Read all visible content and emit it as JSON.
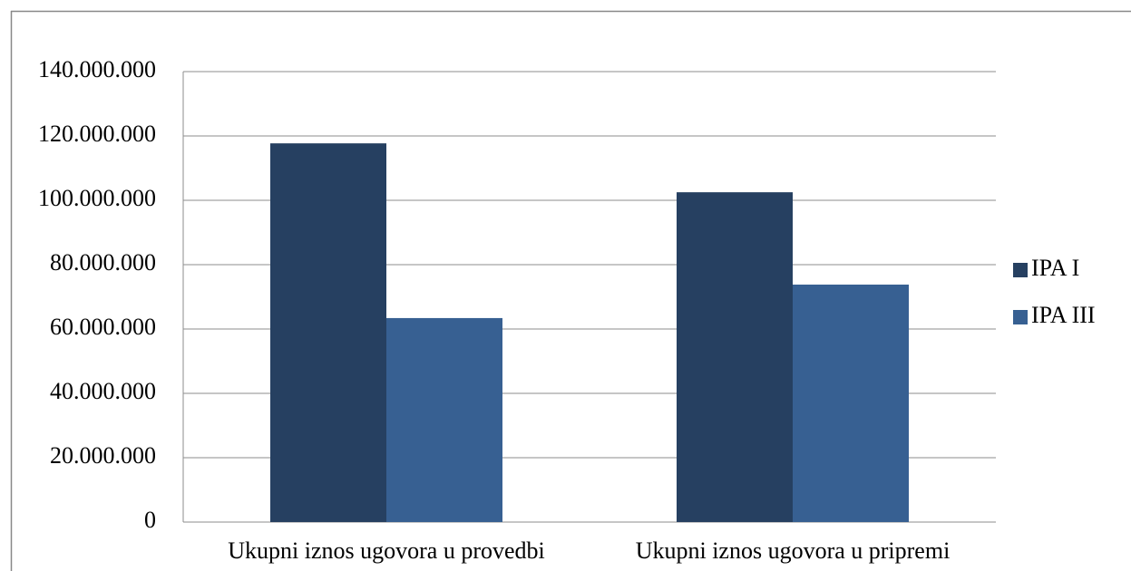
{
  "chart_data": {
    "type": "bar",
    "categories": [
      "Ukupni iznos ugovora u provedbi",
      "Ukupni iznos ugovora u pripremi"
    ],
    "series": [
      {
        "name": "IPA I",
        "color": "#264061",
        "values": [
          117700000,
          102500000
        ]
      },
      {
        "name": "IPA III",
        "color": "#376092",
        "values": [
          63400000,
          73800000
        ]
      }
    ],
    "ylim": [
      0,
      140000000
    ],
    "yticks": [
      0,
      {
        "value": 20000000,
        "label": "20.000.000"
      },
      {
        "value": 40000000,
        "label": "40.000.000"
      },
      {
        "value": 60000000,
        "label": "60.000.000"
      },
      {
        "value": 80000000,
        "label": "80.000.000"
      },
      {
        "value": 100000000,
        "label": "100.000.000"
      },
      {
        "value": 120000000,
        "label": "120.000.000"
      },
      {
        "value": 140000000,
        "label": "140.000.000"
      }
    ],
    "grid": true,
    "legend": "right"
  }
}
